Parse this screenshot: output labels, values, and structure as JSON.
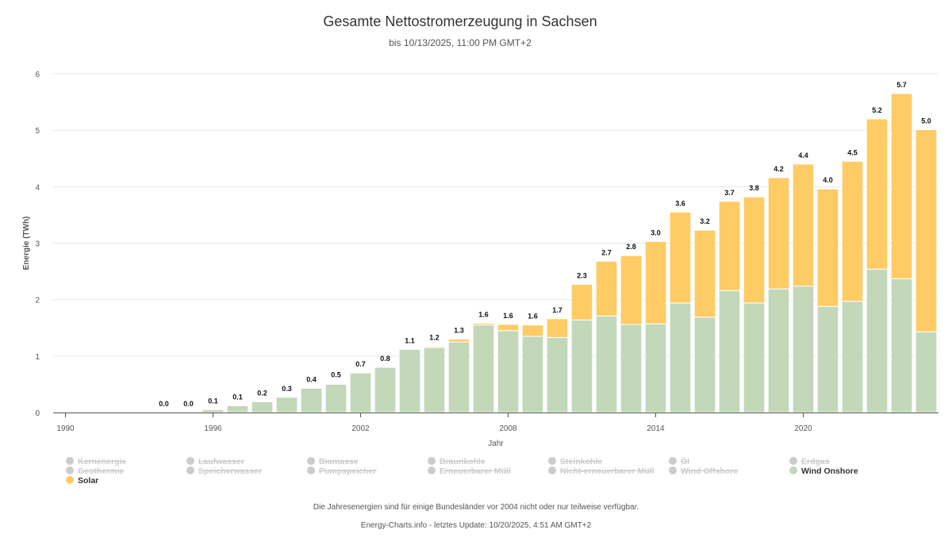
{
  "page": {
    "title": "Gesamte Nettostromerzeugung in Sachsen",
    "subtitle": "bis 10/13/2025, 11:00 PM GMT+2",
    "footnote": "Die Jahresenergien sind für einige Bundesländer vor 2004 nicht oder nur teilweise verfügbar.",
    "credits": "Energy-Charts.info - letztes Update: 10/20/2025, 4:51 AM GMT+2"
  },
  "legend": [
    {
      "name": "Kernenergie",
      "visible": false
    },
    {
      "name": "Laufwasser",
      "visible": false
    },
    {
      "name": "Biomasse",
      "visible": false
    },
    {
      "name": "Braunkohle",
      "visible": false
    },
    {
      "name": "Steinkohle",
      "visible": false
    },
    {
      "name": "Öl",
      "visible": false
    },
    {
      "name": "Erdgas",
      "visible": false
    },
    {
      "name": "Geothermie",
      "visible": false
    },
    {
      "name": "Speicherwasser",
      "visible": false
    },
    {
      "name": "Pumpspeicher",
      "visible": false
    },
    {
      "name": "Erneuerbarer Müll",
      "visible": false
    },
    {
      "name": "Nicht-erneuerbarer Müll",
      "visible": false
    },
    {
      "name": "Wind Offshore",
      "visible": false
    },
    {
      "name": "Wind Onshore",
      "visible": true,
      "color": "#c2d8b9"
    },
    {
      "name": "Solar",
      "visible": true,
      "color": "#ffcb65"
    }
  ],
  "chart_data": {
    "type": "bar",
    "stacked": true,
    "title": "Gesamte Nettostromerzeugung in Sachsen",
    "xlabel": "Jahr",
    "ylabel": "Energie (TWh)",
    "ylim": [
      0,
      6
    ],
    "yticks": [
      "0",
      "1",
      "2",
      "3",
      "4",
      "5",
      "6"
    ],
    "xtick_labels": [
      "1990",
      "1996",
      "2002",
      "2008",
      "2014",
      "2020"
    ],
    "categories": [
      1990,
      1991,
      1992,
      1993,
      1994,
      1995,
      1996,
      1997,
      1998,
      1999,
      2000,
      2001,
      2002,
      2003,
      2004,
      2005,
      2006,
      2007,
      2008,
      2009,
      2010,
      2011,
      2012,
      2013,
      2014,
      2015,
      2016,
      2017,
      2018,
      2019,
      2020,
      2021,
      2022,
      2023,
      2024,
      2025
    ],
    "series": [
      {
        "name": "Wind Onshore",
        "color": "#c2d8b9",
        "values": [
          null,
          null,
          null,
          null,
          0.0,
          0.0,
          0.05,
          0.12,
          0.19,
          0.27,
          0.43,
          0.5,
          0.7,
          0.8,
          1.12,
          1.15,
          1.25,
          1.55,
          1.45,
          1.35,
          1.33,
          1.64,
          1.71,
          1.56,
          1.57,
          1.94,
          1.69,
          2.16,
          1.94,
          2.19,
          2.24,
          1.88,
          1.97,
          2.54,
          2.37,
          1.43
        ]
      },
      {
        "name": "Solar",
        "color": "#ffcb65",
        "values": [
          null,
          null,
          null,
          null,
          0.0,
          0.0,
          0.0,
          0.0,
          0.0,
          0.0,
          0.0,
          0.01,
          0.0,
          0.0,
          0.0,
          0.02,
          0.05,
          0.03,
          0.11,
          0.2,
          0.33,
          0.63,
          0.97,
          1.22,
          1.46,
          1.61,
          1.54,
          1.58,
          1.88,
          1.97,
          2.16,
          2.08,
          2.48,
          2.66,
          3.28,
          3.58
        ]
      }
    ],
    "data_labels": [
      null,
      null,
      null,
      null,
      "0.0",
      "0.0",
      "0.1",
      "0.1",
      "0.2",
      "0.3",
      "0.4",
      "0.5",
      "0.7",
      "0.8",
      "1.1",
      "1.2",
      "1.3",
      "1.6",
      "1.6",
      "1.6",
      "1.7",
      "2.3",
      "2.7",
      "2.8",
      "3.0",
      "3.6",
      "3.2",
      "3.7",
      "3.8",
      "4.2",
      "4.4",
      "4.0",
      "4.5",
      "5.2",
      "5.7",
      "5.0"
    ]
  }
}
